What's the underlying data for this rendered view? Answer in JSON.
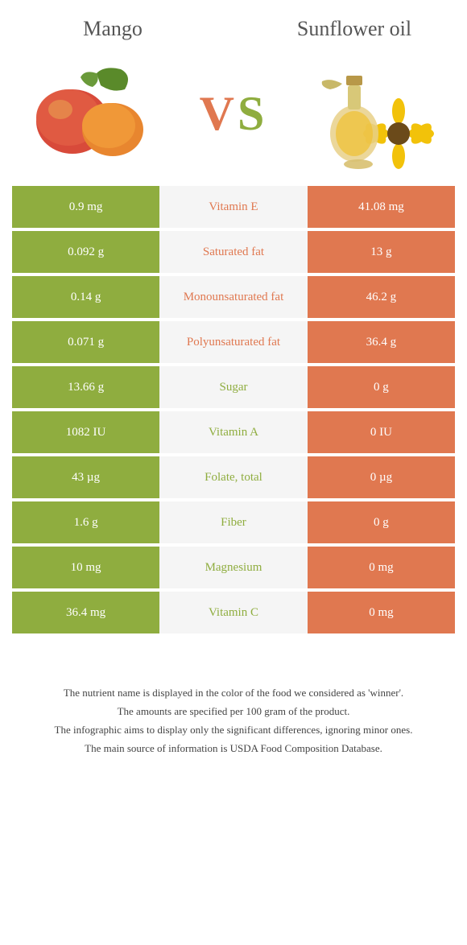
{
  "colors": {
    "mango": "#8fad3f",
    "sunflower": "#e07850",
    "mid_bg": "#f5f5f5",
    "cell_text": "#ffffff",
    "title_text": "#555555"
  },
  "food_left": {
    "title": "Mango"
  },
  "food_right": {
    "title": "Sunflower oil"
  },
  "vs": {
    "v": "V",
    "s": "S"
  },
  "rows": [
    {
      "left": "0.9 mg",
      "label": "Vitamin E",
      "right": "41.08 mg",
      "winner": "right"
    },
    {
      "left": "0.092 g",
      "label": "Saturated fat",
      "right": "13 g",
      "winner": "right"
    },
    {
      "left": "0.14 g",
      "label": "Monounsaturated fat",
      "right": "46.2 g",
      "winner": "right"
    },
    {
      "left": "0.071 g",
      "label": "Polyunsaturated fat",
      "right": "36.4 g",
      "winner": "right"
    },
    {
      "left": "13.66 g",
      "label": "Sugar",
      "right": "0 g",
      "winner": "left"
    },
    {
      "left": "1082 IU",
      "label": "Vitamin A",
      "right": "0 IU",
      "winner": "left"
    },
    {
      "left": "43 µg",
      "label": "Folate, total",
      "right": "0 µg",
      "winner": "left"
    },
    {
      "left": "1.6 g",
      "label": "Fiber",
      "right": "0 g",
      "winner": "left"
    },
    {
      "left": "10 mg",
      "label": "Magnesium",
      "right": "0 mg",
      "winner": "left"
    },
    {
      "left": "36.4 mg",
      "label": "Vitamin C",
      "right": "0 mg",
      "winner": "left"
    }
  ],
  "footer": {
    "line1": "The nutrient name is displayed in the color of the food we considered as 'winner'.",
    "line2": "The amounts are specified per 100 gram of the product.",
    "line3": "The infographic aims to display only the significant differences, ignoring minor ones.",
    "line4": "The main source of information is USDA Food Composition Database."
  }
}
